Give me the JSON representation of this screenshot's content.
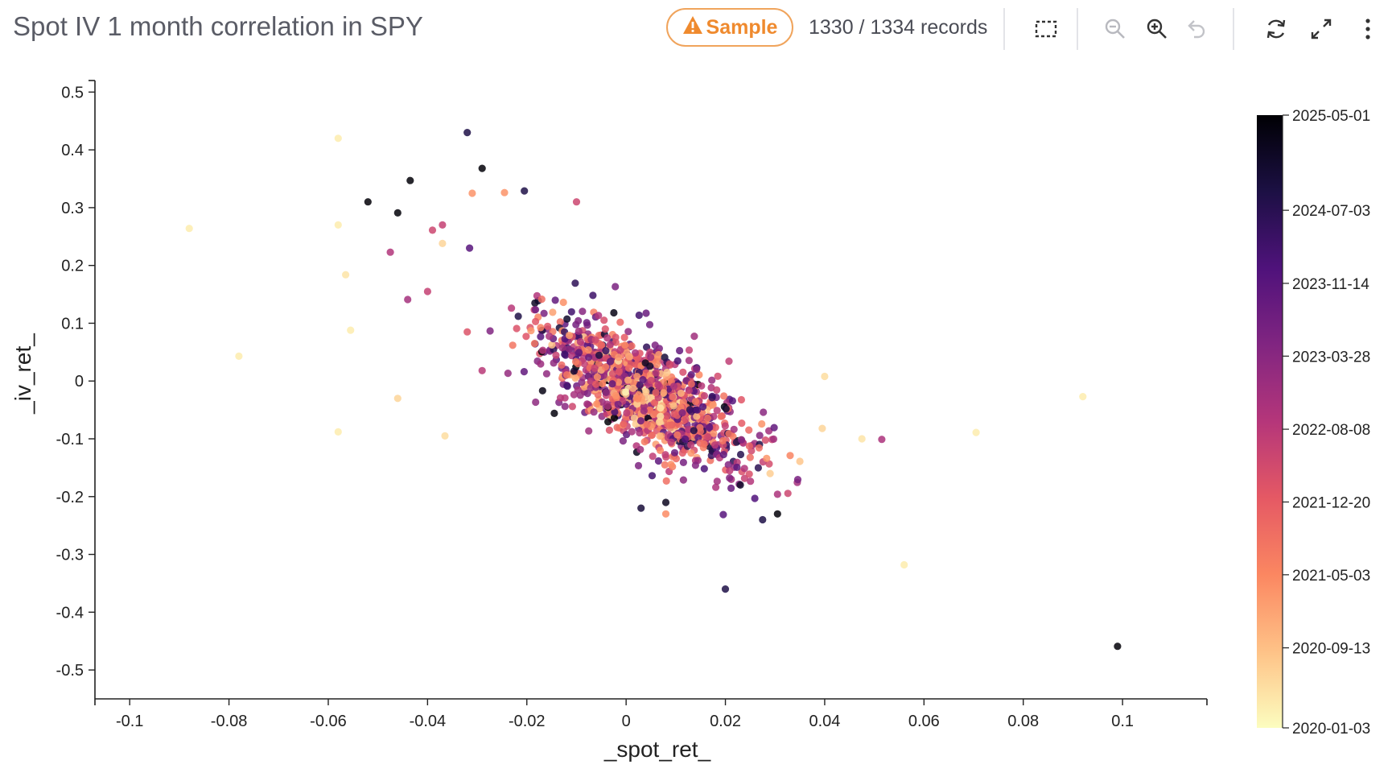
{
  "header": {
    "title": "Spot IV 1 month correlation in SPY",
    "sample_label": "Sample",
    "records_text": "1330 / 1334 records",
    "icons": [
      "selection-box-icon",
      "zoom-out-icon",
      "zoom-in-icon",
      "undo-icon",
      "refresh-icon",
      "fullscreen-icon",
      "more-vertical-icon"
    ],
    "accent_color": "#ef8a2e"
  },
  "chart_data": {
    "type": "scatter",
    "title": "",
    "xlabel": "_spot_ret_",
    "ylabel": "_iv_ret_",
    "xlim": [
      -0.107,
      0.117
    ],
    "ylim": [
      -0.55,
      0.52
    ],
    "x_ticks": [
      -0.1,
      -0.08,
      -0.06,
      -0.04,
      -0.02,
      0,
      0.02,
      0.04,
      0.06,
      0.08,
      0.1
    ],
    "x_tick_labels": [
      "-0.1",
      "-0.08",
      "-0.06",
      "-0.04",
      "-0.02",
      "0",
      "0.02",
      "0.04",
      "0.06",
      "0.08",
      "0.1"
    ],
    "y_ticks": [
      0.5,
      0.4,
      0.3,
      0.2,
      0.1,
      0,
      -0.1,
      -0.2,
      -0.3,
      -0.4,
      -0.5
    ],
    "y_tick_labels": [
      "0.5",
      "0.4",
      "0.3",
      "0.2",
      "0.1",
      "0",
      "-0.1",
      "-0.2",
      "-0.3",
      "-0.4",
      "-0.5"
    ],
    "grid": false,
    "color_scale": {
      "name": "magma",
      "field": "date",
      "legend_placement": "right",
      "domain": [
        "2020-01-03",
        "2025-05-01"
      ],
      "tick_labels": [
        "2025-05-01",
        "2024-07-03",
        "2023-11-14",
        "2023-03-28",
        "2022-08-08",
        "2021-12-20",
        "2021-05-03",
        "2020-09-13",
        "2020-01-03"
      ],
      "colors": [
        "#000004",
        "#1c1044",
        "#4f127b",
        "#812581",
        "#b5367a",
        "#e55964",
        "#fb8761",
        "#fec287",
        "#fcfdbf"
      ]
    },
    "dense_cluster": {
      "count": 1210,
      "center": [
        0.0035,
        -0.02
      ],
      "std": [
        0.01,
        0.06
      ],
      "correlation": -0.7
    },
    "outliers": [
      {
        "x": -0.088,
        "y": 0.264,
        "date": "2020-03"
      },
      {
        "x": -0.078,
        "y": 0.043,
        "date": "2020-03"
      },
      {
        "x": -0.058,
        "y": 0.42,
        "date": "2020-03"
      },
      {
        "x": -0.058,
        "y": 0.27,
        "date": "2020-03"
      },
      {
        "x": -0.0565,
        "y": 0.184,
        "date": "2020-04"
      },
      {
        "x": -0.0555,
        "y": 0.088,
        "date": "2020-03"
      },
      {
        "x": -0.058,
        "y": -0.088,
        "date": "2020-03"
      },
      {
        "x": -0.046,
        "y": -0.03,
        "date": "2020-06"
      },
      {
        "x": -0.052,
        "y": 0.31,
        "date": "2025-04"
      },
      {
        "x": -0.046,
        "y": 0.291,
        "date": "2025-04"
      },
      {
        "x": -0.0435,
        "y": 0.347,
        "date": "2025-04"
      },
      {
        "x": -0.0475,
        "y": 0.223,
        "date": "2022-09"
      },
      {
        "x": -0.044,
        "y": 0.141,
        "date": "2022-11"
      },
      {
        "x": -0.04,
        "y": 0.155,
        "date": "2022-06"
      },
      {
        "x": -0.039,
        "y": 0.261,
        "date": "2022-05"
      },
      {
        "x": -0.037,
        "y": 0.27,
        "date": "2022-06"
      },
      {
        "x": -0.037,
        "y": 0.238,
        "date": "2020-06"
      },
      {
        "x": -0.032,
        "y": 0.43,
        "date": "2024-08"
      },
      {
        "x": -0.029,
        "y": 0.368,
        "date": "2025-04"
      },
      {
        "x": -0.031,
        "y": 0.325,
        "date": "2021-03"
      },
      {
        "x": -0.0205,
        "y": 0.329,
        "date": "2024-08"
      },
      {
        "x": -0.0245,
        "y": 0.326,
        "date": "2021-03"
      },
      {
        "x": -0.01,
        "y": 0.31,
        "date": "2022-05"
      },
      {
        "x": -0.0365,
        "y": -0.095,
        "date": "2020-05"
      },
      {
        "x": -0.029,
        "y": 0.018,
        "date": "2022-08"
      },
      {
        "x": -0.032,
        "y": 0.085,
        "date": "2022-02"
      },
      {
        "x": 0.0395,
        "y": -0.082,
        "date": "2020-06"
      },
      {
        "x": 0.04,
        "y": 0.008,
        "date": "2020-05"
      },
      {
        "x": 0.0475,
        "y": -0.1,
        "date": "2020-04"
      },
      {
        "x": 0.0515,
        "y": -0.101,
        "date": "2022-10"
      },
      {
        "x": 0.035,
        "y": -0.139,
        "date": "2020-08"
      },
      {
        "x": 0.056,
        "y": -0.318,
        "date": "2020-03"
      },
      {
        "x": 0.0705,
        "y": -0.089,
        "date": "2020-03"
      },
      {
        "x": 0.092,
        "y": -0.027,
        "date": "2020-03"
      },
      {
        "x": 0.099,
        "y": -0.459,
        "date": "2025-04"
      },
      {
        "x": 0.02,
        "y": -0.36,
        "date": "2024-08"
      },
      {
        "x": 0.0275,
        "y": -0.24,
        "date": "2024-08"
      },
      {
        "x": 0.0305,
        "y": -0.23,
        "date": "2025-04"
      },
      {
        "x": 0.0305,
        "y": -0.196,
        "date": "2022-10"
      },
      {
        "x": 0.003,
        "y": -0.22,
        "date": "2024-10"
      },
      {
        "x": 0.008,
        "y": -0.21,
        "date": "2025-01"
      },
      {
        "x": 0.008,
        "y": -0.23,
        "date": "2021-04"
      },
      {
        "x": 0.023,
        "y": -0.18,
        "date": "2024-12"
      },
      {
        "x": 0.029,
        "y": -0.16,
        "date": "2020-07"
      }
    ]
  }
}
